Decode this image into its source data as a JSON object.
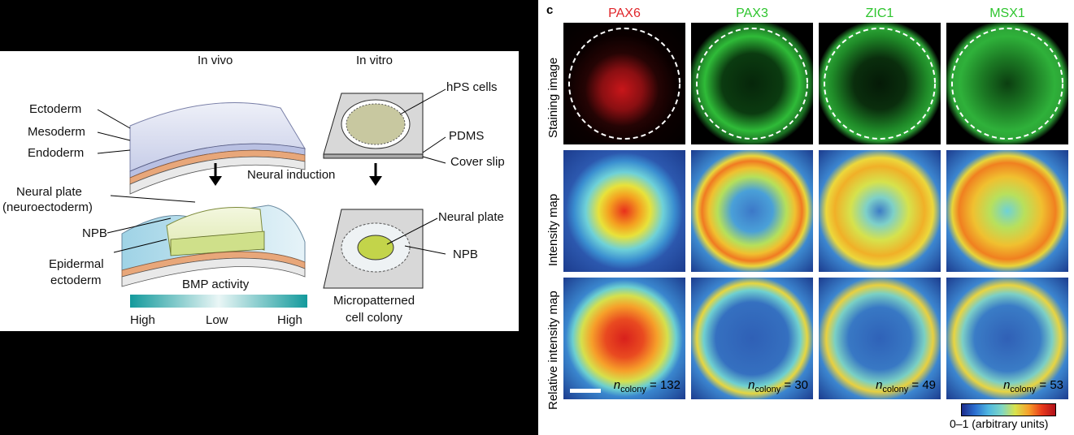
{
  "left": {
    "col_in_vivo": "In vivo",
    "col_in_vitro": "In vitro",
    "ectoderm": "Ectoderm",
    "mesoderm": "Mesoderm",
    "endoderm": "Endoderm",
    "hps_cells": "hPS cells",
    "pdms": "PDMS",
    "cover_slip": "Cover slip",
    "neural_induction": "Neural induction",
    "neural_plate_vivo": "Neural plate",
    "neuroectoderm": "(neuroectoderm)",
    "npb_vivo": "NPB",
    "epidermal": "Epidermal",
    "ectoderm2": "ectoderm",
    "neural_plate_vitro": "Neural plate",
    "npb_vitro": "NPB",
    "bmp_activity": "BMP activity",
    "bmp_high_left": "High",
    "bmp_low": "Low",
    "bmp_high_right": "High",
    "micropatterned": "Micropatterned",
    "cell_colony": "cell colony",
    "colors": {
      "bmp_teal": "#139a9c"
    }
  },
  "right": {
    "panel_label": "c",
    "columns": [
      {
        "name": "PAX6",
        "color": "#e0262b",
        "n": "132"
      },
      {
        "name": "PAX3",
        "color": "#2ec52e",
        "n": "30"
      },
      {
        "name": "ZIC1",
        "color": "#2ec52e",
        "n": "49"
      },
      {
        "name": "MSX1",
        "color": "#2ec52e",
        "n": "53"
      }
    ],
    "rows": [
      "Staining image",
      "Intensity map",
      "Relative intensity map"
    ],
    "n_symbol": "n",
    "n_sub": "colony",
    "n_eq": " = ",
    "colorbar_label": "0–1 (arbitrary units)"
  }
}
